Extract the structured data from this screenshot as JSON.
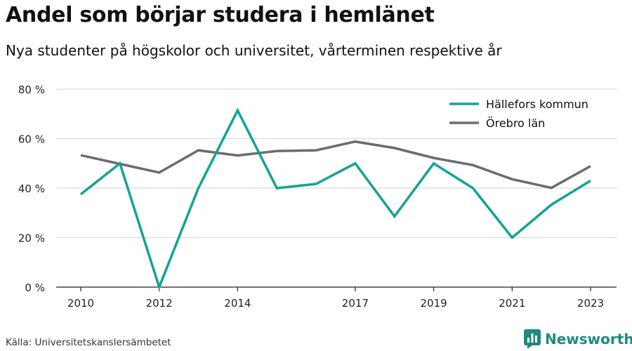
{
  "title": "Andel som börjar studera i hemlänet",
  "subtitle": "Nya studenter på högskolor och universitet, vårterminen respektive år",
  "source": "Källa: Universitetskanslersämbetet",
  "brand": {
    "name": "Newsworthy",
    "icon": "bar-chart-logo-icon",
    "color": "#1f8a7f"
  },
  "chart_data": {
    "type": "line",
    "x": [
      2010,
      2011,
      2012,
      2013,
      2014,
      2015,
      2016,
      2017,
      2018,
      2019,
      2020,
      2021,
      2022,
      2023
    ],
    "x_ticks": [
      2010,
      2012,
      2014,
      2017,
      2019,
      2021,
      2023
    ],
    "y_ticks": [
      0,
      20,
      40,
      60,
      80
    ],
    "y_tick_labels": [
      "0 %",
      "20 %",
      "40 %",
      "60 %",
      "80 %"
    ],
    "ylim": [
      0,
      80
    ],
    "grid": true,
    "legend_position": "top-right",
    "series": [
      {
        "name": "Hällefors kommun",
        "color": "#14a396",
        "values": [
          37.5,
          50.0,
          0.0,
          40.0,
          71.4,
          40.0,
          41.7,
          50.0,
          28.6,
          50.0,
          40.0,
          20.0,
          33.3,
          43.0
        ]
      },
      {
        "name": "Örebro län",
        "color": "#6b6b70",
        "values": [
          53.3,
          49.8,
          46.3,
          55.3,
          53.2,
          55.0,
          55.3,
          58.8,
          56.2,
          52.2,
          49.3,
          43.6,
          40.1,
          48.9
        ]
      }
    ]
  }
}
